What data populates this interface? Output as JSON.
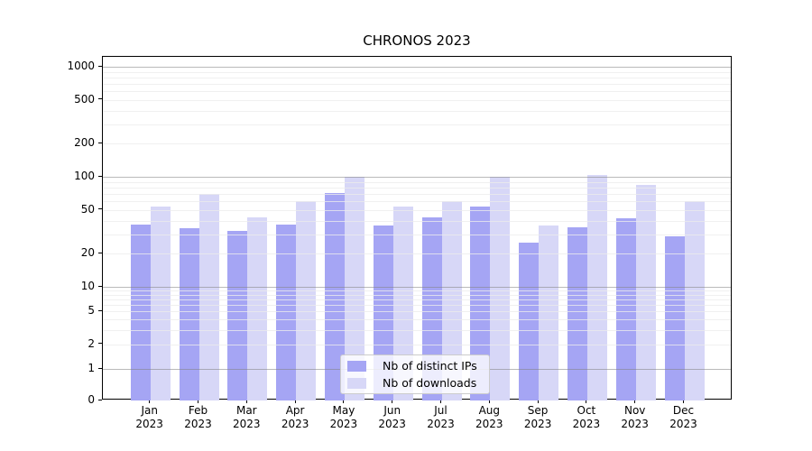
{
  "chart_data": {
    "type": "bar",
    "title": "CHRONOS 2023",
    "categories": [
      "Jan",
      "Feb",
      "Mar",
      "Apr",
      "May",
      "Jun",
      "Jul",
      "Aug",
      "Sep",
      "Oct",
      "Nov",
      "Dec"
    ],
    "category_year": "2023",
    "series": [
      {
        "name": "Nb of distinct IPs",
        "color": "#a5a5f4",
        "values": [
          37,
          34,
          32,
          37,
          71,
          36,
          43,
          54,
          25,
          35,
          42,
          29
        ]
      },
      {
        "name": "Nb of downloads",
        "color": "#d7d7f7",
        "values": [
          54,
          70,
          43,
          60,
          100,
          54,
          60,
          100,
          36,
          104,
          84,
          60
        ]
      }
    ],
    "yscale": "symlog",
    "ylim": [
      0,
      1230
    ],
    "ytick_values": [
      1000,
      500,
      200,
      100,
      50,
      20,
      10,
      5,
      2,
      1,
      0
    ],
    "ytick_labels": [
      "1000",
      "500",
      "200",
      "100",
      "50",
      "20",
      "10",
      "5",
      "2",
      "1",
      "0"
    ],
    "grid": "horizontal major+minor",
    "legend_position": "lower center",
    "xlabel": "",
    "ylabel": ""
  }
}
